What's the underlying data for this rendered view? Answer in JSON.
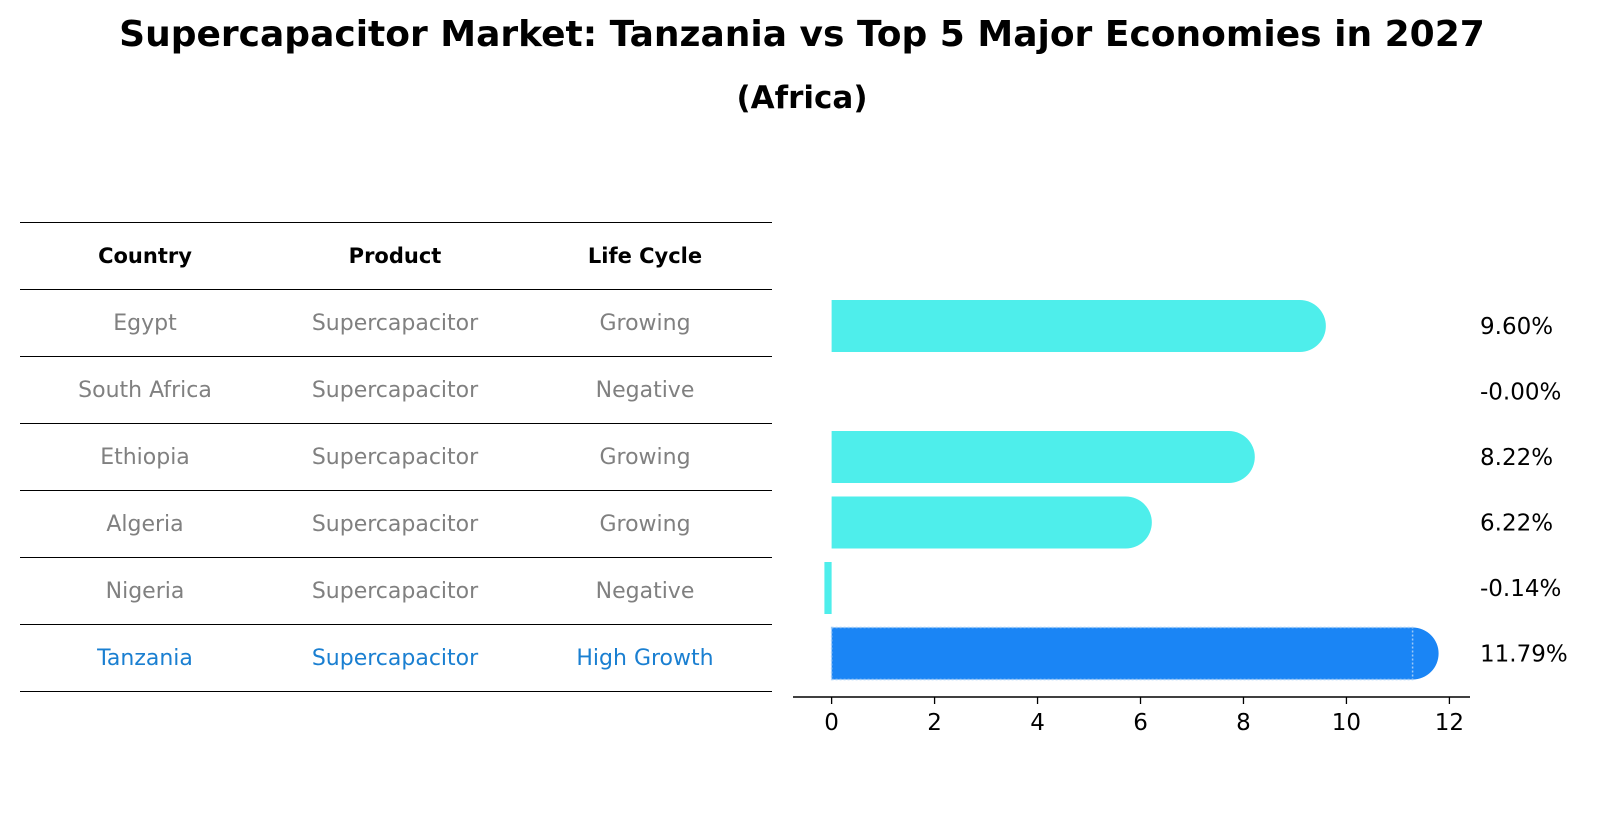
{
  "title": "Supercapacitor Market: Tanzania vs Top 5 Major Economies in 2027",
  "subtitle": "(Africa)",
  "table": {
    "headers": [
      "Country",
      "Product",
      "Life Cycle"
    ],
    "rows": [
      {
        "country": "Egypt",
        "product": "Supercapacitor",
        "life_cycle": "Growing"
      },
      {
        "country": "South Africa",
        "product": "Supercapacitor",
        "life_cycle": "Negative"
      },
      {
        "country": "Ethiopia",
        "product": "Supercapacitor",
        "life_cycle": "Growing"
      },
      {
        "country": "Algeria",
        "product": "Supercapacitor",
        "life_cycle": "Growing"
      },
      {
        "country": "Nigeria",
        "product": "Supercapacitor",
        "life_cycle": "Negative"
      },
      {
        "country": "Tanzania",
        "product": "Supercapacitor",
        "life_cycle": "High Growth"
      }
    ]
  },
  "chart_data": {
    "type": "bar",
    "orientation": "horizontal",
    "title": "Supercapacitor Market: Tanzania vs Top 5 Major Economies in 2027",
    "subtitle": "(Africa)",
    "categories": [
      "Egypt",
      "South Africa",
      "Ethiopia",
      "Algeria",
      "Nigeria",
      "Tanzania"
    ],
    "values": [
      9.6,
      -0.0,
      8.22,
      6.22,
      -0.14,
      11.79
    ],
    "value_labels": [
      "9.60%",
      "-0.00%",
      "8.22%",
      "6.22%",
      "-0.14%",
      "11.79%"
    ],
    "highlight": "Tanzania",
    "xlim": [
      -0.75,
      12.4
    ],
    "xticks": [
      0,
      2,
      4,
      6,
      8,
      10,
      12
    ],
    "xlabel": "",
    "ylabel": "",
    "colors": {
      "default": "#4eeeeb",
      "highlight": "#1a85f5"
    }
  },
  "colors": {
    "highlight_text": "#1a7fd1",
    "muted_text": "#808080"
  }
}
